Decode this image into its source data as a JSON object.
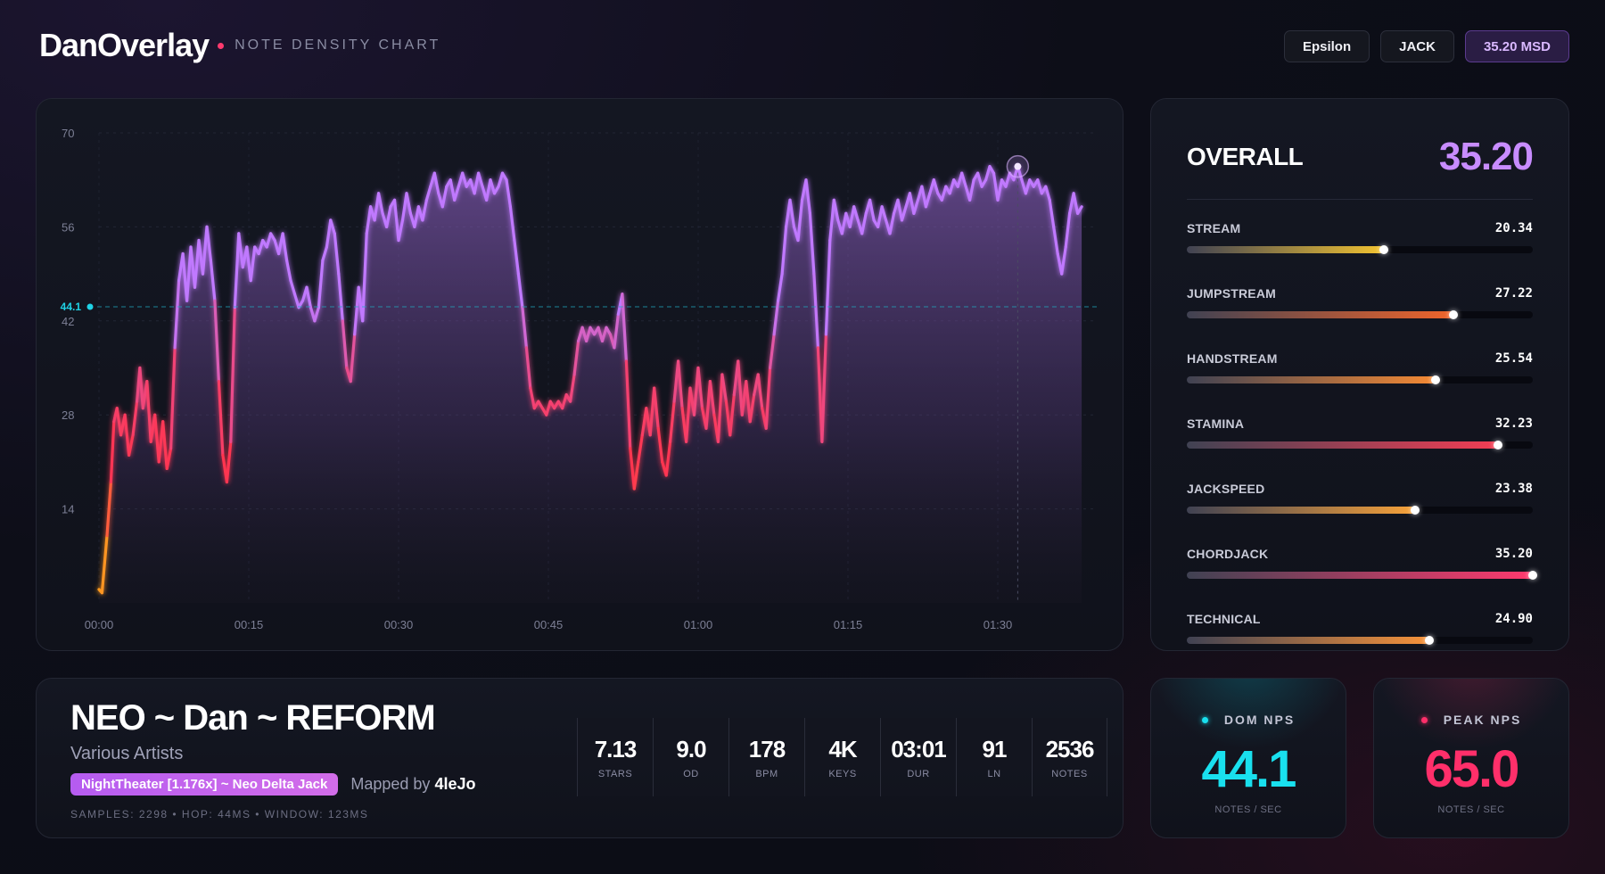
{
  "header": {
    "brand": "DanOverlay",
    "subtitle": "NOTE DENSITY CHART",
    "pills": [
      {
        "label": "Epsilon"
      },
      {
        "label": "JACK"
      },
      {
        "label": "35.20 MSD"
      }
    ]
  },
  "chart_data": {
    "type": "line",
    "title": "",
    "xlabel": "",
    "ylabel": "",
    "xlim": [
      0,
      100
    ],
    "ylim": [
      0,
      70
    ],
    "y_ticks": [
      "14",
      "28",
      "42",
      "56",
      "70"
    ],
    "x_ticks": [
      {
        "label": "00:00",
        "t": 0
      },
      {
        "label": "00:15",
        "t": 15
      },
      {
        "label": "00:30",
        "t": 30
      },
      {
        "label": "00:45",
        "t": 45
      },
      {
        "label": "01:00",
        "t": 60
      },
      {
        "label": "01:15",
        "t": 75
      },
      {
        "label": "01:30",
        "t": 90
      }
    ],
    "reference_line": {
      "value": 44.1,
      "label": "44.1"
    },
    "peak_marker": {
      "t": 92,
      "value": 65.0
    },
    "color_scale": {
      "low": "#ff9a1f",
      "mid": "#ff3550",
      "high": "#c079ff"
    },
    "series": [
      {
        "points": [
          [
            0,
            2
          ],
          [
            0.3,
            1.5
          ],
          [
            0.8,
            10
          ],
          [
            1.2,
            18
          ],
          [
            1.5,
            27
          ],
          [
            1.8,
            29
          ],
          [
            2.2,
            25
          ],
          [
            2.6,
            28
          ],
          [
            3,
            22
          ],
          [
            3.4,
            25
          ],
          [
            3.8,
            30
          ],
          [
            4.1,
            35
          ],
          [
            4.4,
            29
          ],
          [
            4.8,
            33
          ],
          [
            5.2,
            24
          ],
          [
            5.6,
            28
          ],
          [
            6,
            21
          ],
          [
            6.4,
            27
          ],
          [
            6.8,
            20
          ],
          [
            7.2,
            23
          ],
          [
            7.6,
            38
          ],
          [
            8,
            48
          ],
          [
            8.4,
            52
          ],
          [
            8.8,
            45
          ],
          [
            9.2,
            53
          ],
          [
            9.6,
            47
          ],
          [
            10,
            54
          ],
          [
            10.4,
            49
          ],
          [
            10.8,
            56
          ],
          [
            11.2,
            51
          ],
          [
            11.6,
            45
          ],
          [
            12,
            33
          ],
          [
            12.4,
            22
          ],
          [
            12.8,
            18
          ],
          [
            13.2,
            24
          ],
          [
            13.6,
            44
          ],
          [
            14,
            55
          ],
          [
            14.4,
            50
          ],
          [
            14.8,
            53
          ],
          [
            15.2,
            48
          ],
          [
            15.6,
            53
          ],
          [
            16,
            52
          ],
          [
            16.4,
            54
          ],
          [
            16.8,
            53
          ],
          [
            17.2,
            55
          ],
          [
            17.6,
            54
          ],
          [
            18,
            52
          ],
          [
            18.4,
            55
          ],
          [
            18.8,
            51
          ],
          [
            19.2,
            48
          ],
          [
            19.6,
            46
          ],
          [
            20,
            44
          ],
          [
            20.4,
            45
          ],
          [
            20.8,
            47
          ],
          [
            21.2,
            44
          ],
          [
            21.6,
            42
          ],
          [
            22,
            44
          ],
          [
            22.4,
            51
          ],
          [
            22.8,
            53
          ],
          [
            23.2,
            57
          ],
          [
            23.6,
            55
          ],
          [
            24,
            49
          ],
          [
            24.4,
            42
          ],
          [
            24.8,
            35
          ],
          [
            25.2,
            33
          ],
          [
            25.6,
            40
          ],
          [
            26,
            47
          ],
          [
            26.4,
            42
          ],
          [
            26.8,
            55
          ],
          [
            27.2,
            59
          ],
          [
            27.6,
            57
          ],
          [
            28,
            61
          ],
          [
            28.4,
            58
          ],
          [
            28.8,
            56
          ],
          [
            29.2,
            59
          ],
          [
            29.6,
            60
          ],
          [
            30,
            54
          ],
          [
            30.4,
            57
          ],
          [
            30.8,
            61
          ],
          [
            31.2,
            58
          ],
          [
            31.6,
            56
          ],
          [
            32,
            59
          ],
          [
            32.4,
            57
          ],
          [
            32.8,
            60
          ],
          [
            33.2,
            62
          ],
          [
            33.6,
            64
          ],
          [
            34,
            61
          ],
          [
            34.4,
            59
          ],
          [
            34.8,
            62
          ],
          [
            35.2,
            63
          ],
          [
            35.6,
            60
          ],
          [
            36,
            62
          ],
          [
            36.4,
            64
          ],
          [
            36.8,
            62
          ],
          [
            37.2,
            63
          ],
          [
            37.6,
            61
          ],
          [
            38,
            64
          ],
          [
            38.4,
            62
          ],
          [
            38.8,
            60
          ],
          [
            39.2,
            63
          ],
          [
            39.6,
            61
          ],
          [
            40,
            62
          ],
          [
            40.4,
            64
          ],
          [
            40.8,
            63
          ],
          [
            41.2,
            59
          ],
          [
            41.6,
            54
          ],
          [
            42,
            49
          ],
          [
            42.4,
            44
          ],
          [
            42.8,
            38
          ],
          [
            43.2,
            32
          ],
          [
            43.6,
            29
          ],
          [
            44,
            30
          ],
          [
            44.4,
            29
          ],
          [
            44.8,
            28
          ],
          [
            45.2,
            30
          ],
          [
            45.6,
            29
          ],
          [
            46,
            30
          ],
          [
            46.4,
            29
          ],
          [
            46.8,
            31
          ],
          [
            47.2,
            30
          ],
          [
            47.6,
            34
          ],
          [
            48,
            39
          ],
          [
            48.4,
            41
          ],
          [
            48.8,
            39
          ],
          [
            49.2,
            41
          ],
          [
            49.6,
            40
          ],
          [
            50,
            41
          ],
          [
            50.4,
            39
          ],
          [
            50.8,
            41
          ],
          [
            51.2,
            40
          ],
          [
            51.6,
            38
          ],
          [
            52,
            43
          ],
          [
            52.4,
            46
          ],
          [
            52.8,
            36
          ],
          [
            53.2,
            23
          ],
          [
            53.6,
            17
          ],
          [
            54,
            21
          ],
          [
            54.4,
            25
          ],
          [
            54.8,
            29
          ],
          [
            55.2,
            25
          ],
          [
            55.6,
            32
          ],
          [
            56,
            26
          ],
          [
            56.4,
            21
          ],
          [
            56.8,
            19
          ],
          [
            57.2,
            24
          ],
          [
            57.6,
            30
          ],
          [
            58,
            36
          ],
          [
            58.4,
            29
          ],
          [
            58.8,
            24
          ],
          [
            59.2,
            32
          ],
          [
            59.6,
            28
          ],
          [
            60,
            35
          ],
          [
            60.4,
            29
          ],
          [
            60.8,
            26
          ],
          [
            61.2,
            33
          ],
          [
            61.6,
            28
          ],
          [
            62,
            24
          ],
          [
            62.4,
            34
          ],
          [
            62.8,
            30
          ],
          [
            63.2,
            25
          ],
          [
            63.6,
            31
          ],
          [
            64,
            36
          ],
          [
            64.4,
            28
          ],
          [
            64.8,
            33
          ],
          [
            65.2,
            27
          ],
          [
            65.6,
            31
          ],
          [
            66,
            34
          ],
          [
            66.4,
            29
          ],
          [
            66.8,
            26
          ],
          [
            67.2,
            35
          ],
          [
            67.6,
            40
          ],
          [
            68,
            45
          ],
          [
            68.4,
            49
          ],
          [
            68.8,
            56
          ],
          [
            69.2,
            60
          ],
          [
            69.6,
            56
          ],
          [
            70,
            54
          ],
          [
            70.4,
            60
          ],
          [
            70.8,
            63
          ],
          [
            71.2,
            58
          ],
          [
            71.6,
            49
          ],
          [
            72,
            38
          ],
          [
            72.4,
            24
          ],
          [
            72.8,
            40
          ],
          [
            73.2,
            54
          ],
          [
            73.6,
            60
          ],
          [
            74,
            57
          ],
          [
            74.4,
            55
          ],
          [
            74.8,
            58
          ],
          [
            75.2,
            56
          ],
          [
            75.6,
            59
          ],
          [
            76,
            57
          ],
          [
            76.4,
            55
          ],
          [
            76.8,
            58
          ],
          [
            77.2,
            60
          ],
          [
            77.6,
            57
          ],
          [
            78,
            56
          ],
          [
            78.4,
            59
          ],
          [
            78.8,
            57
          ],
          [
            79.2,
            55
          ],
          [
            79.6,
            58
          ],
          [
            80,
            60
          ],
          [
            80.4,
            57
          ],
          [
            80.8,
            59
          ],
          [
            81.2,
            61
          ],
          [
            81.6,
            58
          ],
          [
            82,
            60
          ],
          [
            82.4,
            62
          ],
          [
            82.8,
            59
          ],
          [
            83.2,
            61
          ],
          [
            83.6,
            63
          ],
          [
            84,
            61
          ],
          [
            84.4,
            60
          ],
          [
            84.8,
            62
          ],
          [
            85.2,
            61
          ],
          [
            85.6,
            63
          ],
          [
            86,
            62
          ],
          [
            86.4,
            64
          ],
          [
            86.8,
            62
          ],
          [
            87.2,
            60
          ],
          [
            87.6,
            63
          ],
          [
            88,
            64
          ],
          [
            88.4,
            62
          ],
          [
            88.8,
            63
          ],
          [
            89.2,
            65
          ],
          [
            89.6,
            64
          ],
          [
            90,
            60
          ],
          [
            90.4,
            63
          ],
          [
            90.8,
            62
          ],
          [
            91.2,
            64
          ],
          [
            91.6,
            63
          ],
          [
            92,
            65
          ],
          [
            92.4,
            63
          ],
          [
            92.8,
            61
          ],
          [
            93.2,
            63
          ],
          [
            93.6,
            62
          ],
          [
            94,
            63
          ],
          [
            94.4,
            61
          ],
          [
            94.8,
            62
          ],
          [
            95.2,
            60
          ],
          [
            95.6,
            56
          ],
          [
            96,
            52
          ],
          [
            96.4,
            49
          ],
          [
            96.8,
            53
          ],
          [
            97.2,
            58
          ],
          [
            97.6,
            61
          ],
          [
            98,
            58
          ],
          [
            98.4,
            59
          ]
        ]
      }
    ]
  },
  "skills": {
    "overall_label": "OVERALL",
    "overall_value": "35.20",
    "items": [
      {
        "name": "STREAM",
        "value": "20.34",
        "level": 0.57,
        "color": "#f2c331"
      },
      {
        "name": "JUMPSTREAM",
        "value": "27.22",
        "level": 0.77,
        "color": "#f0652b"
      },
      {
        "name": "HANDSTREAM",
        "value": "25.54",
        "level": 0.72,
        "color": "#f58a34"
      },
      {
        "name": "STAMINA",
        "value": "32.23",
        "level": 0.9,
        "color": "#f33e54"
      },
      {
        "name": "JACKSPEED",
        "value": "23.38",
        "level": 0.66,
        "color": "#f7a23a"
      },
      {
        "name": "CHORDJACK",
        "value": "35.20",
        "level": 1.0,
        "color": "#ff3a6e"
      },
      {
        "name": "TECHNICAL",
        "value": "24.90",
        "level": 0.7,
        "color": "#f7933a"
      }
    ]
  },
  "song": {
    "title": "NEO ~ Dan ~ REFORM",
    "artist": "Various Artists",
    "difficulty": "NightTheater [1.176x] ~ Neo Delta Jack",
    "mapped_by_label": "Mapped by",
    "mapper": "4leJo",
    "meta": "SAMPLES: 2298  •  HOP: 44MS  •  WINDOW: 123MS",
    "stats": [
      {
        "value": "7.13",
        "label": "STARS"
      },
      {
        "value": "9.0",
        "label": "OD"
      },
      {
        "value": "178",
        "label": "BPM"
      },
      {
        "value": "4K",
        "label": "KEYS"
      },
      {
        "value": "03:01",
        "label": "DUR"
      },
      {
        "value": "91",
        "label": "LN"
      },
      {
        "value": "2536",
        "label": "NOTES"
      }
    ]
  },
  "nps": {
    "dom": {
      "label": "DOM NPS",
      "value": "44.1",
      "unit": "NOTES / SEC",
      "color": "#19e0ee"
    },
    "peak": {
      "label": "PEAK NPS",
      "value": "65.0",
      "unit": "NOTES / SEC",
      "color": "#ff2f6a"
    }
  }
}
